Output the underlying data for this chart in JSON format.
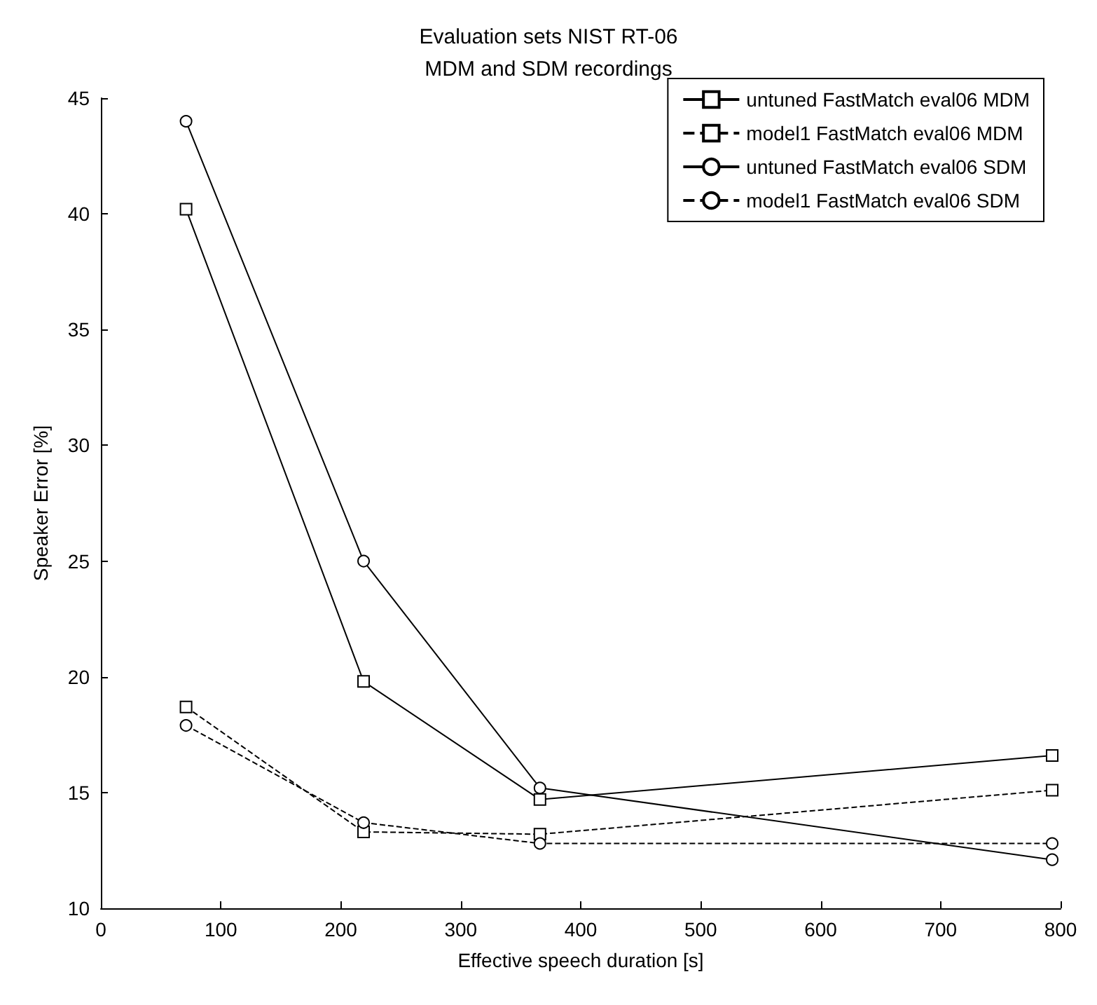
{
  "chart_data": {
    "type": "line",
    "title": "Evaluation sets NIST RT-06",
    "subtitle": "MDM and SDM recordings",
    "xlabel": "Effective speech duration [s]",
    "ylabel": "Speaker Error [%]",
    "x": [
      71,
      219,
      366,
      793
    ],
    "series": [
      {
        "name": "untuned FastMatch eval06 MDM",
        "color": "#000000",
        "marker": "square",
        "line_style": "solid",
        "values": [
          40.2,
          19.8,
          14.7,
          16.6
        ]
      },
      {
        "name": "model1 FastMatch eval06 MDM",
        "color": "#000000",
        "marker": "square",
        "line_style": "dashed",
        "values": [
          18.7,
          13.3,
          13.2,
          15.1
        ]
      },
      {
        "name": "untuned FastMatch eval06 SDM",
        "color": "#000000",
        "marker": "circle",
        "line_style": "solid",
        "values": [
          44.0,
          25.0,
          15.2,
          12.1
        ]
      },
      {
        "name": "model1 FastMatch eval06 SDM",
        "color": "#000000",
        "marker": "circle",
        "line_style": "dashed",
        "values": [
          17.9,
          13.7,
          12.8,
          12.8
        ]
      }
    ],
    "xlim": [
      0,
      800
    ],
    "xticks": [
      0,
      100,
      200,
      300,
      400,
      500,
      600,
      700,
      800
    ],
    "ylim": [
      10,
      45
    ],
    "yticks": [
      10,
      15,
      20,
      25,
      30,
      35,
      40,
      45
    ],
    "grid": false,
    "legend": "top right"
  }
}
